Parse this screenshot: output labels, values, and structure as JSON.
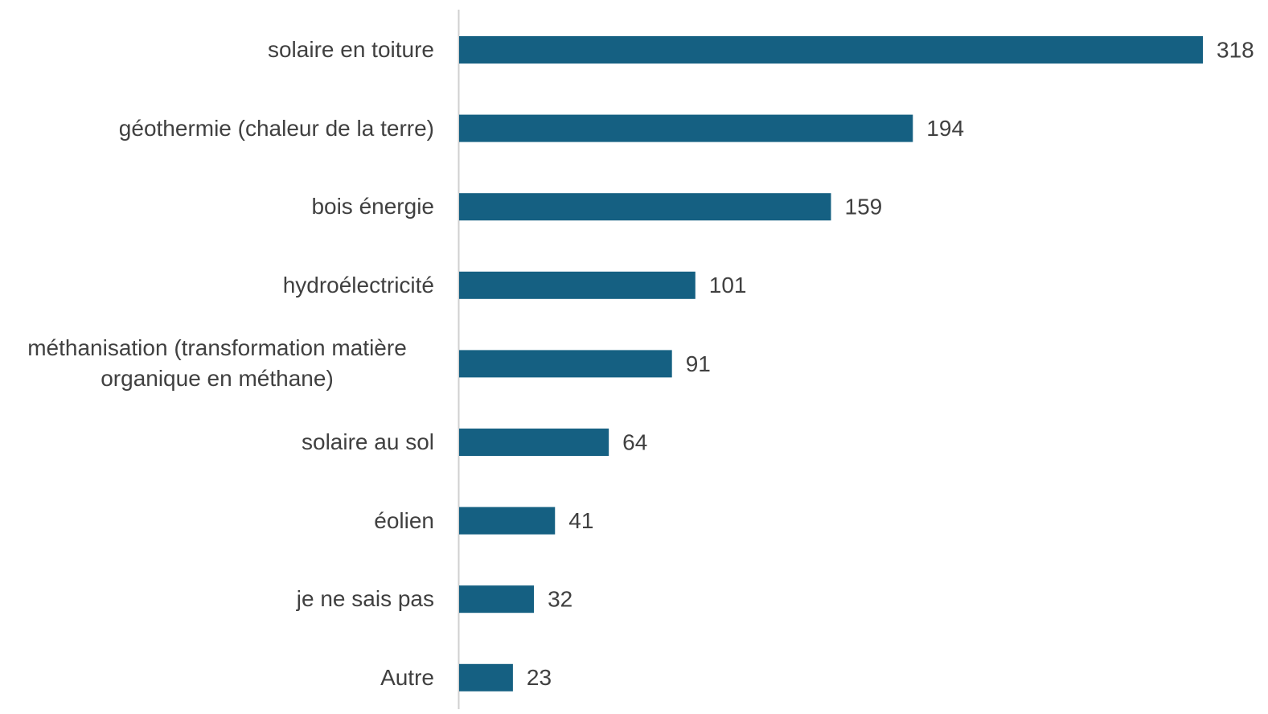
{
  "chart_data": {
    "type": "hbar",
    "categories": [
      "solaire en toiture",
      "géothermie (chaleur de la terre)",
      "bois énergie",
      "hydroélectricité",
      "méthanisation (transformation matière organique en méthane)",
      "solaire au sol",
      "éolien",
      "je ne sais pas",
      "Autre"
    ],
    "values": [
      318,
      194,
      159,
      101,
      91,
      64,
      41,
      32,
      23
    ],
    "color": "#156082"
  }
}
